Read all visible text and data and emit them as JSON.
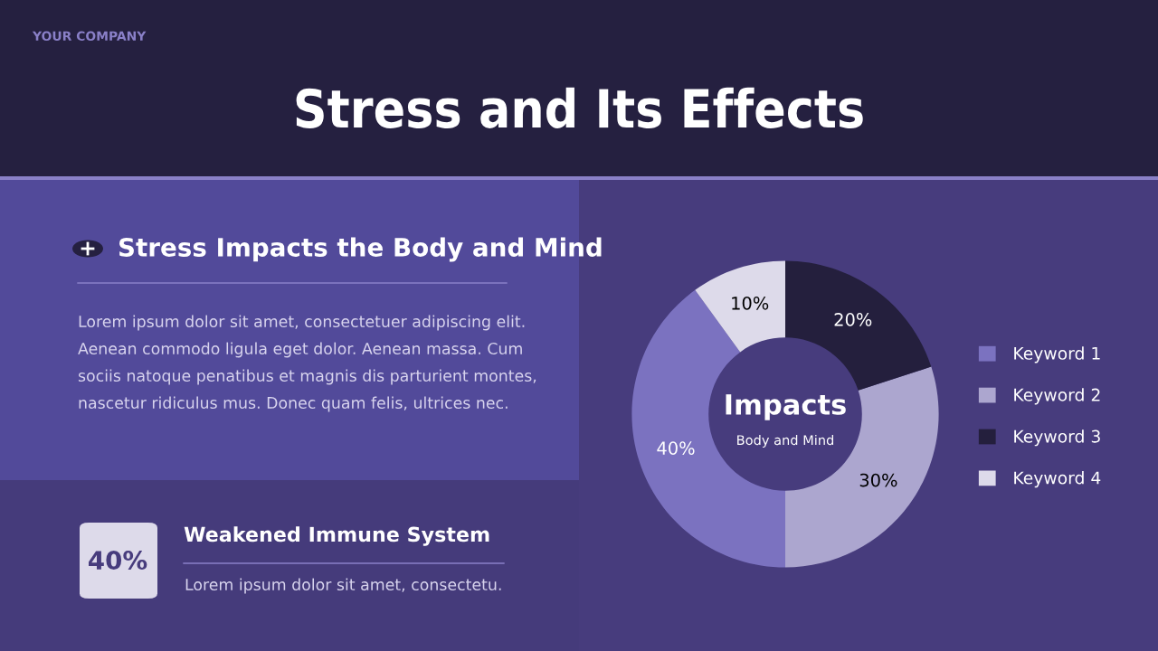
{
  "chart_data": {
    "type": "donut",
    "title": "Stress and Its Effects",
    "categories": [
      "Keyword 1",
      "Keyword 2",
      "Keyword 3",
      "Keyword 4"
    ],
    "values": [
      40,
      30,
      20,
      10
    ],
    "colors": [
      "#7b72c0",
      "#aca6cf",
      "#241f3d",
      "#dddaea"
    ],
    "value_labels": [
      "40%",
      "30%",
      "20%",
      "10%"
    ],
    "legend": "right",
    "annotations": [
      "YOUR COMPANY",
      "Stress Impacts the Body and Mind",
      "Lorem ipsum dolor sit amet, consectetuer adipiscing elit.\nAenean commodo ligula eget dolor. Aenean massa. Cum\nsociis natoque penatibus et magnis dis parturient montes,\nnascetur ridiculus mus. Donec quam felis, ultrices nec.",
      "40%",
      "Weakened Immune System",
      "Lorem ipsum dolor sit amet, consectetu.",
      "Impacts",
      "Body and Mind"
    ]
  }
}
